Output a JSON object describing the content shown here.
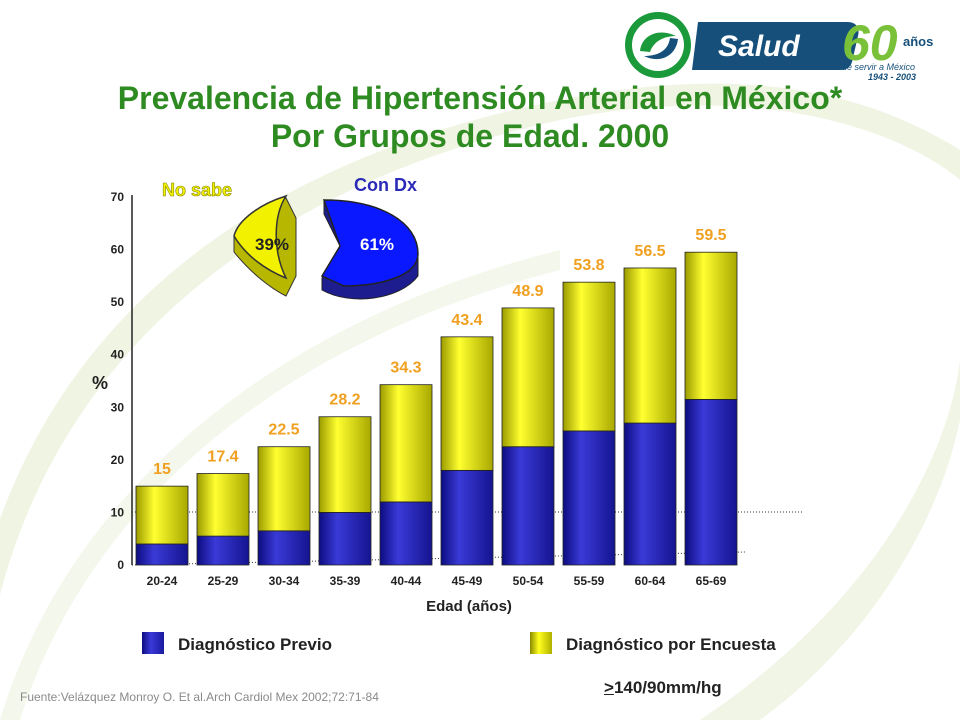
{
  "logo": {
    "brand": "Salud",
    "anniversary": "60",
    "anniversary_suffix": "años",
    "tagline": "de servir a México",
    "years": "1943 - 2003"
  },
  "title_line1": "Prevalencia de Hipertensión Arterial en México*",
  "title_line2": "Por Grupos de Edad. 2000",
  "colors": {
    "title": "#2e8b22",
    "blue": "#2a2ab8",
    "yellow": "#f2f200",
    "total_labels": "#f0a020"
  },
  "inset_pie": {
    "slices": [
      {
        "label": "No sabe",
        "percent_label": "39%",
        "value": 39
      },
      {
        "label": "Con Dx",
        "percent_label": "61%",
        "value": 61
      }
    ]
  },
  "chart_data": {
    "type": "bar",
    "stacked": true,
    "categories": [
      "20-24",
      "25-29",
      "30-34",
      "35-39",
      "40-44",
      "45-49",
      "50-54",
      "55-59",
      "60-64",
      "65-69"
    ],
    "series": [
      {
        "name": "Diagnóstico Previo",
        "values": [
          4,
          5.5,
          6.5,
          10,
          12,
          18,
          22.5,
          25.5,
          27,
          31.5
        ]
      },
      {
        "name": "Diagnóstico por Encuesta",
        "values": [
          11,
          11.9,
          16,
          18.2,
          22.3,
          25.4,
          26.4,
          28.3,
          29.5,
          28
        ]
      }
    ],
    "totals": [
      15,
      17.4,
      22.5,
      28.2,
      34.3,
      43.4,
      48.9,
      53.8,
      56.5,
      59.5
    ],
    "total_labels": [
      "15",
      "17.4",
      "22.5",
      "28.2",
      "34.3",
      "43.4",
      "48.9",
      "53.8",
      "56.5",
      "59.5"
    ],
    "ylabel": "%",
    "xlabel": "Edad (años)",
    "ylim": [
      0,
      70
    ],
    "yticks": [
      0,
      10,
      20,
      30,
      40,
      50,
      60,
      70
    ],
    "grid": false
  },
  "legend": {
    "item1": "Diagnóstico Previo",
    "item2": "Diagnóstico por Encuesta"
  },
  "threshold_ge": ">",
  "threshold_rest": "140/90mm/hg",
  "source": "Fuente:Velázquez  Monroy O. Et al.Arch Cardiol Mex 2002;72:71-84"
}
